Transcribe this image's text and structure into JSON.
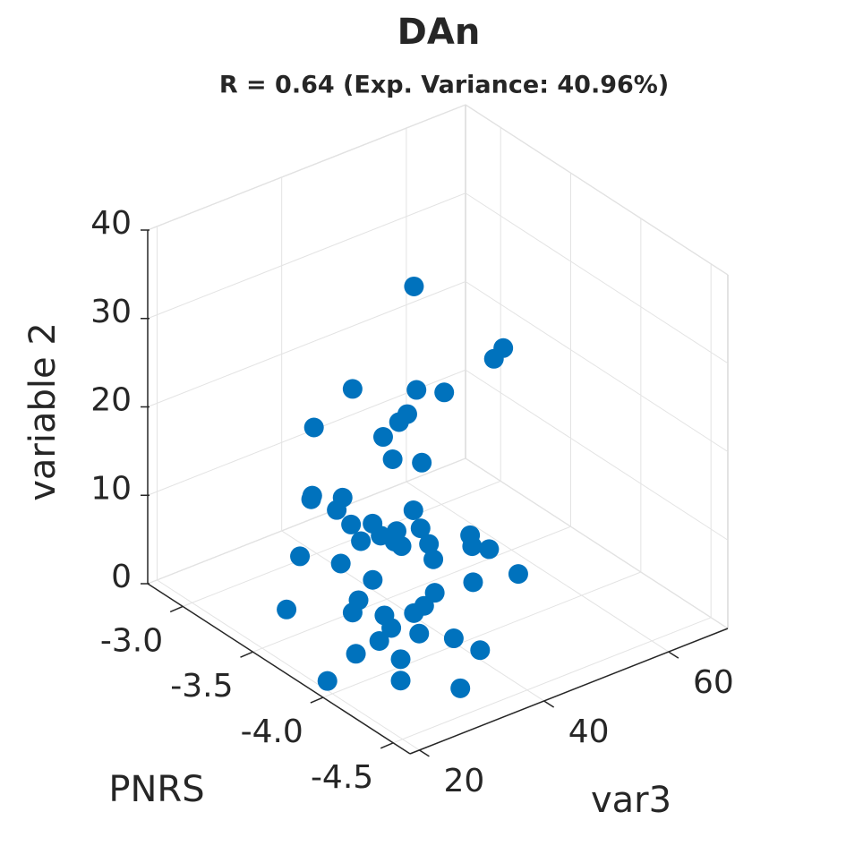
{
  "chart_data": {
    "type": "scatter3d",
    "title": "DAn",
    "subtitle": "R = 0.64 (Exp. Variance: 40.96%)",
    "xlabel": "PNRS",
    "ylabel": "var3",
    "zlabel": "variable 2",
    "color": "#0072BD",
    "grid": true,
    "xlim": [
      -4.62,
      -2.75
    ],
    "ylim": [
      18.5,
      69.5
    ],
    "zlim": [
      0,
      40
    ],
    "xticks": [
      {
        "value": -3,
        "label": "-3.0"
      },
      -3.5,
      {
        "value": -4,
        "label": "-4.0"
      },
      -4.5
    ],
    "yticks": [
      20,
      40,
      60
    ],
    "zticks": [
      0,
      10,
      20,
      30,
      40
    ],
    "x": [
      -2.88,
      -3.53,
      -3.53,
      -2.98,
      -3.28,
      -3.42,
      -3.33,
      -3.32,
      -2.94,
      -3.3,
      -3.43,
      -3.58,
      -3.19,
      -3.2,
      -3.34,
      -3.36,
      -3.72,
      -3.48,
      -3.58,
      -3.82,
      -3.72,
      -3.66,
      -3.59,
      -3.75,
      -3.8,
      -3.92,
      -4.08,
      -4.13,
      -4.22,
      -3.36,
      -4.0,
      -3.58,
      -3.79,
      -4.27,
      -4.45,
      -4.13,
      -3.8,
      -4.13,
      -3.5,
      -3.82,
      -3.98,
      -4.11,
      -4.06,
      -4.21,
      -4.05,
      -4.39,
      -3.99,
      -4.56,
      -4.22,
      -3.96,
      -4.3,
      -4.61
    ],
    "y": [
      58.3,
      58.0,
      56.5,
      46.2,
      49.7,
      51.0,
      47.1,
      46.0,
      40.9,
      43.9,
      42.5,
      43.8,
      35.0,
      34.6,
      36.5,
      35.1,
      39.3,
      34.7,
      35.9,
      38.2,
      36.6,
      35.4,
      33.8,
      35.6,
      35.6,
      37.3,
      40.3,
      39.5,
      40.2,
      29.2,
      36.2,
      30.8,
      31.2,
      36.5,
      39.7,
      33.5,
      28.7,
      31.8,
      23.9,
      27.3,
      28.8,
      30.6,
      28.1,
      29.2,
      26.4,
      30.7,
      24.0,
      31.1,
      26.0,
      20.1,
      24.2,
      26.8
    ],
    "z": [
      23.9,
      23.7,
      22.9,
      16.7,
      18.7,
      19.5,
      17.2,
      16.5,
      13.4,
      15.2,
      14.4,
      15.2,
      9.9,
      9.7,
      10.8,
      10.0,
      12.5,
      9.7,
      10.5,
      11.8,
      10.9,
      10.1,
      9.2,
      10.3,
      10.3,
      11.3,
      13.1,
      12.6,
      13.0,
      6.4,
      10.7,
      7.4,
      7.6,
      10.8,
      12.7,
      9.0,
      6.1,
      8.0,
      3.3,
      5.3,
      6.2,
      7.3,
      5.8,
      6.4,
      4.7,
      7.3,
      3.3,
      7.6,
      4.5,
      1.0,
      3.4,
      5.0
    ]
  }
}
